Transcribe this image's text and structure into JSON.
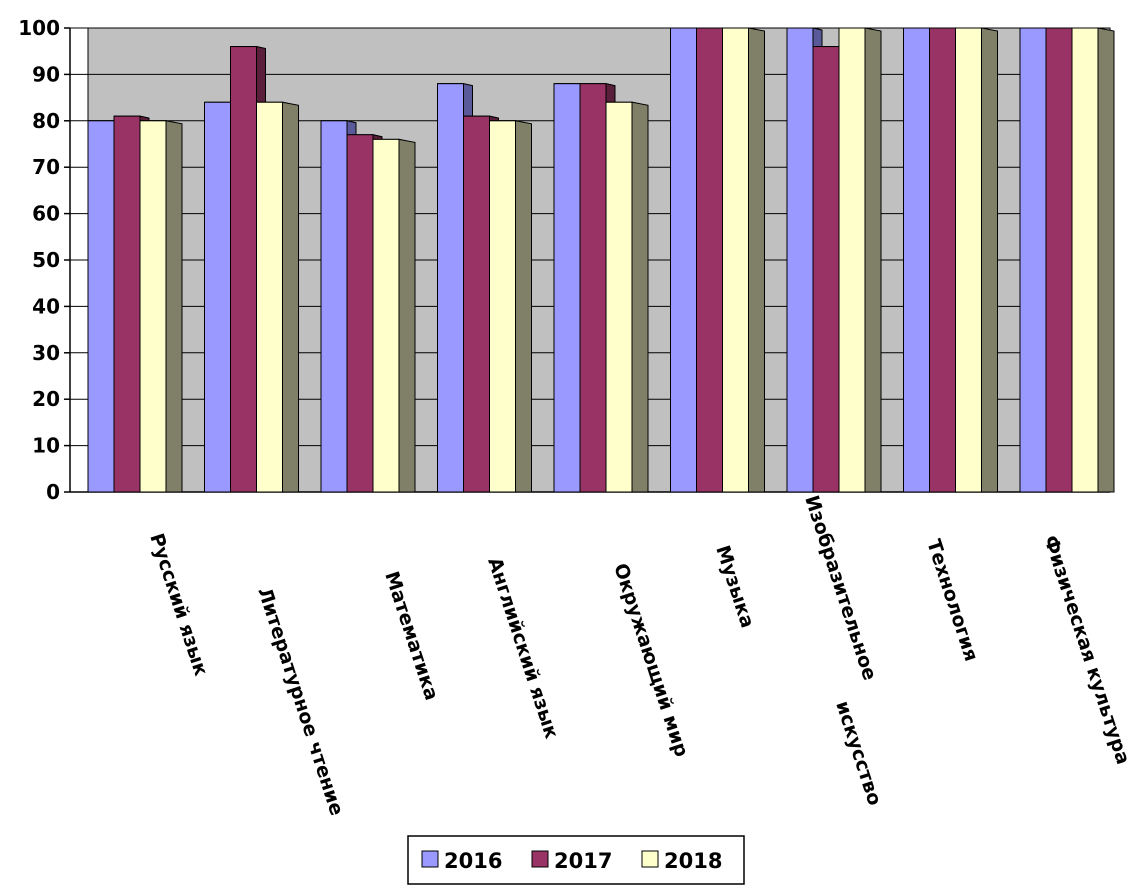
{
  "chart_data": {
    "type": "bar",
    "categories": [
      "Русский язык",
      "Литературное чтение",
      "Математика",
      "Английский язык",
      "Окружающий мир",
      "Музыка",
      "Изобразительное искусство",
      "Технология",
      "Физическая культура"
    ],
    "category_lines": [
      [
        "Русский язык"
      ],
      [
        "Литературное чтение"
      ],
      [
        "Математика"
      ],
      [
        "Английский язык"
      ],
      [
        "Окружающий мир"
      ],
      [
        "Музыка"
      ],
      [
        "Изобразительное",
        "искусство"
      ],
      [
        "Технология"
      ],
      [
        "Физическая культура"
      ]
    ],
    "series": [
      {
        "name": "2016",
        "values": [
          80,
          84,
          80,
          88,
          88,
          100,
          100,
          100,
          100
        ],
        "color": "#9999ff"
      },
      {
        "name": "2017",
        "values": [
          81,
          96,
          77,
          81,
          88,
          100,
          96,
          100,
          100
        ],
        "color": "#993366"
      },
      {
        "name": "2018",
        "values": [
          80,
          84,
          76,
          80,
          84,
          100,
          100,
          100,
          100
        ],
        "color": "#ffffcc"
      }
    ],
    "ylim": [
      0,
      100
    ],
    "yticks": [
      0,
      10,
      20,
      30,
      40,
      50,
      60,
      70,
      80,
      90,
      100
    ],
    "grid": true,
    "legend_position": "bottom",
    "plot_background": "#c0c0c0",
    "side_wall_color": "#808069"
  }
}
